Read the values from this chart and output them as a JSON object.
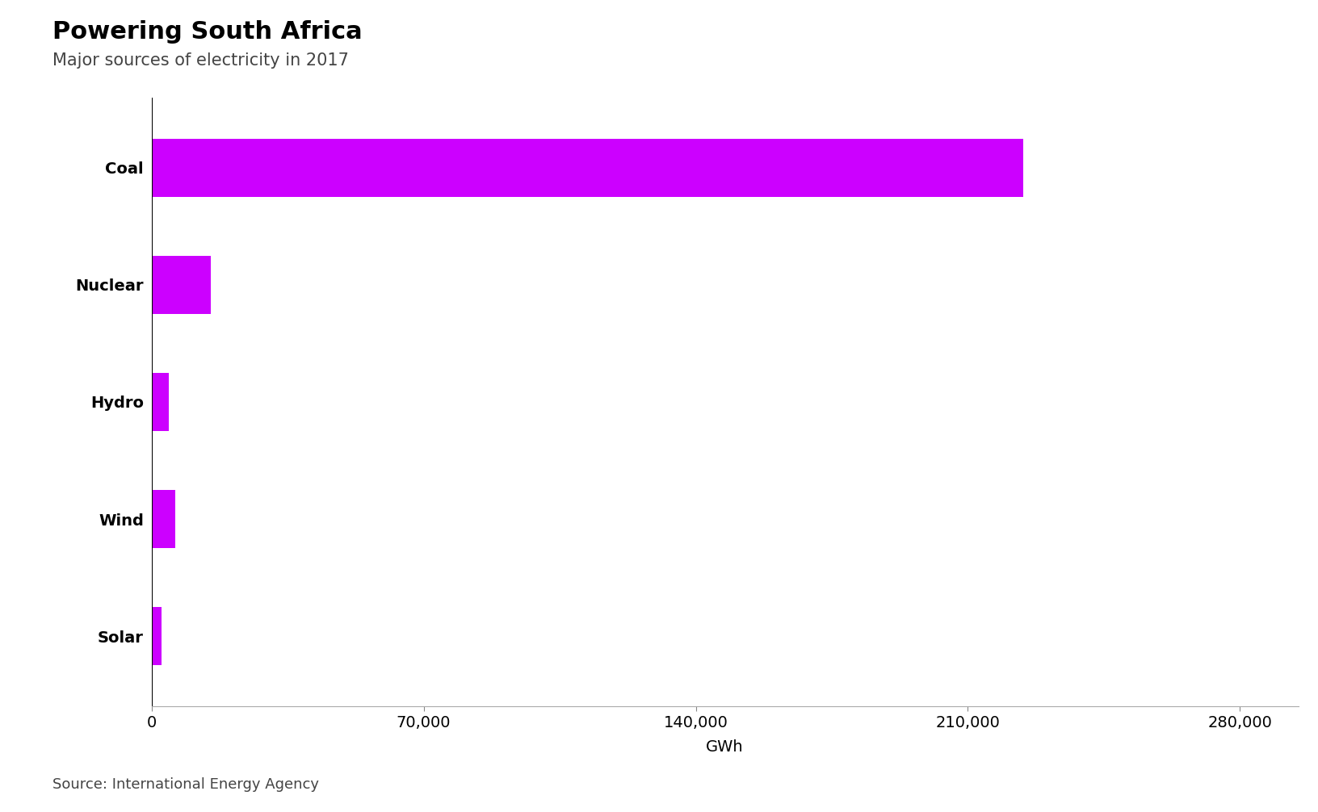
{
  "title": "Powering South Africa",
  "subtitle": "Major sources of electricity in 2017",
  "categories": [
    "Coal",
    "Nuclear",
    "Hydro",
    "Wind",
    "Solar"
  ],
  "values": [
    224248,
    15220,
    4500,
    6109,
    2519
  ],
  "bar_color": "#cc00ff",
  "background_color": "#ffffff",
  "xlabel": "GWh",
  "xlim": [
    0,
    295000
  ],
  "xticks": [
    0,
    70000,
    140000,
    210000,
    280000
  ],
  "xtick_labels": [
    "0",
    "70,000",
    "140,000",
    "210,000",
    "280,000"
  ],
  "source_text": "Source: International Energy Agency",
  "title_fontsize": 22,
  "subtitle_fontsize": 15,
  "tick_fontsize": 14,
  "xlabel_fontsize": 14,
  "source_fontsize": 13,
  "bar_height": 0.5
}
